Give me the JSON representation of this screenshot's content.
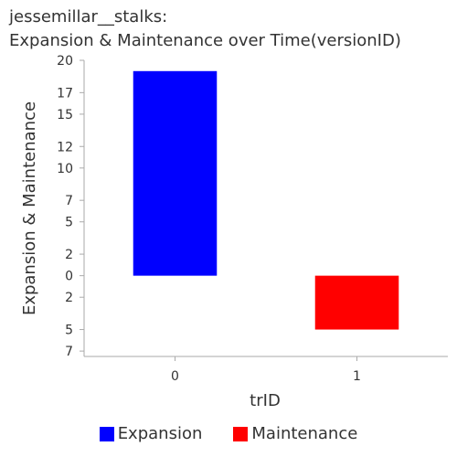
{
  "chart_data": {
    "type": "bar",
    "title": "jessemillar__stalks:",
    "subtitle": "Expansion & Maintenance over Time(versionID)",
    "xlabel": "trID",
    "ylabel": "Expansion & Maintenance",
    "categories": [
      "0",
      "1"
    ],
    "series": [
      {
        "name": "Expansion",
        "color": "#0000ff",
        "values": [
          19,
          0
        ]
      },
      {
        "name": "Maintenance",
        "color": "#ff0000",
        "values": [
          0,
          -5
        ]
      }
    ],
    "ylim": [
      -7.5,
      20
    ],
    "y_ticks": [
      20,
      17,
      15,
      12,
      10,
      7,
      5,
      2,
      0,
      -2,
      -5,
      -7
    ],
    "y_tick_labels": [
      "20",
      "17",
      "15",
      "12",
      "10",
      "7",
      "5",
      "2",
      "0",
      "2",
      "5",
      "7"
    ],
    "legend_placement": "bottom",
    "grid": false
  }
}
